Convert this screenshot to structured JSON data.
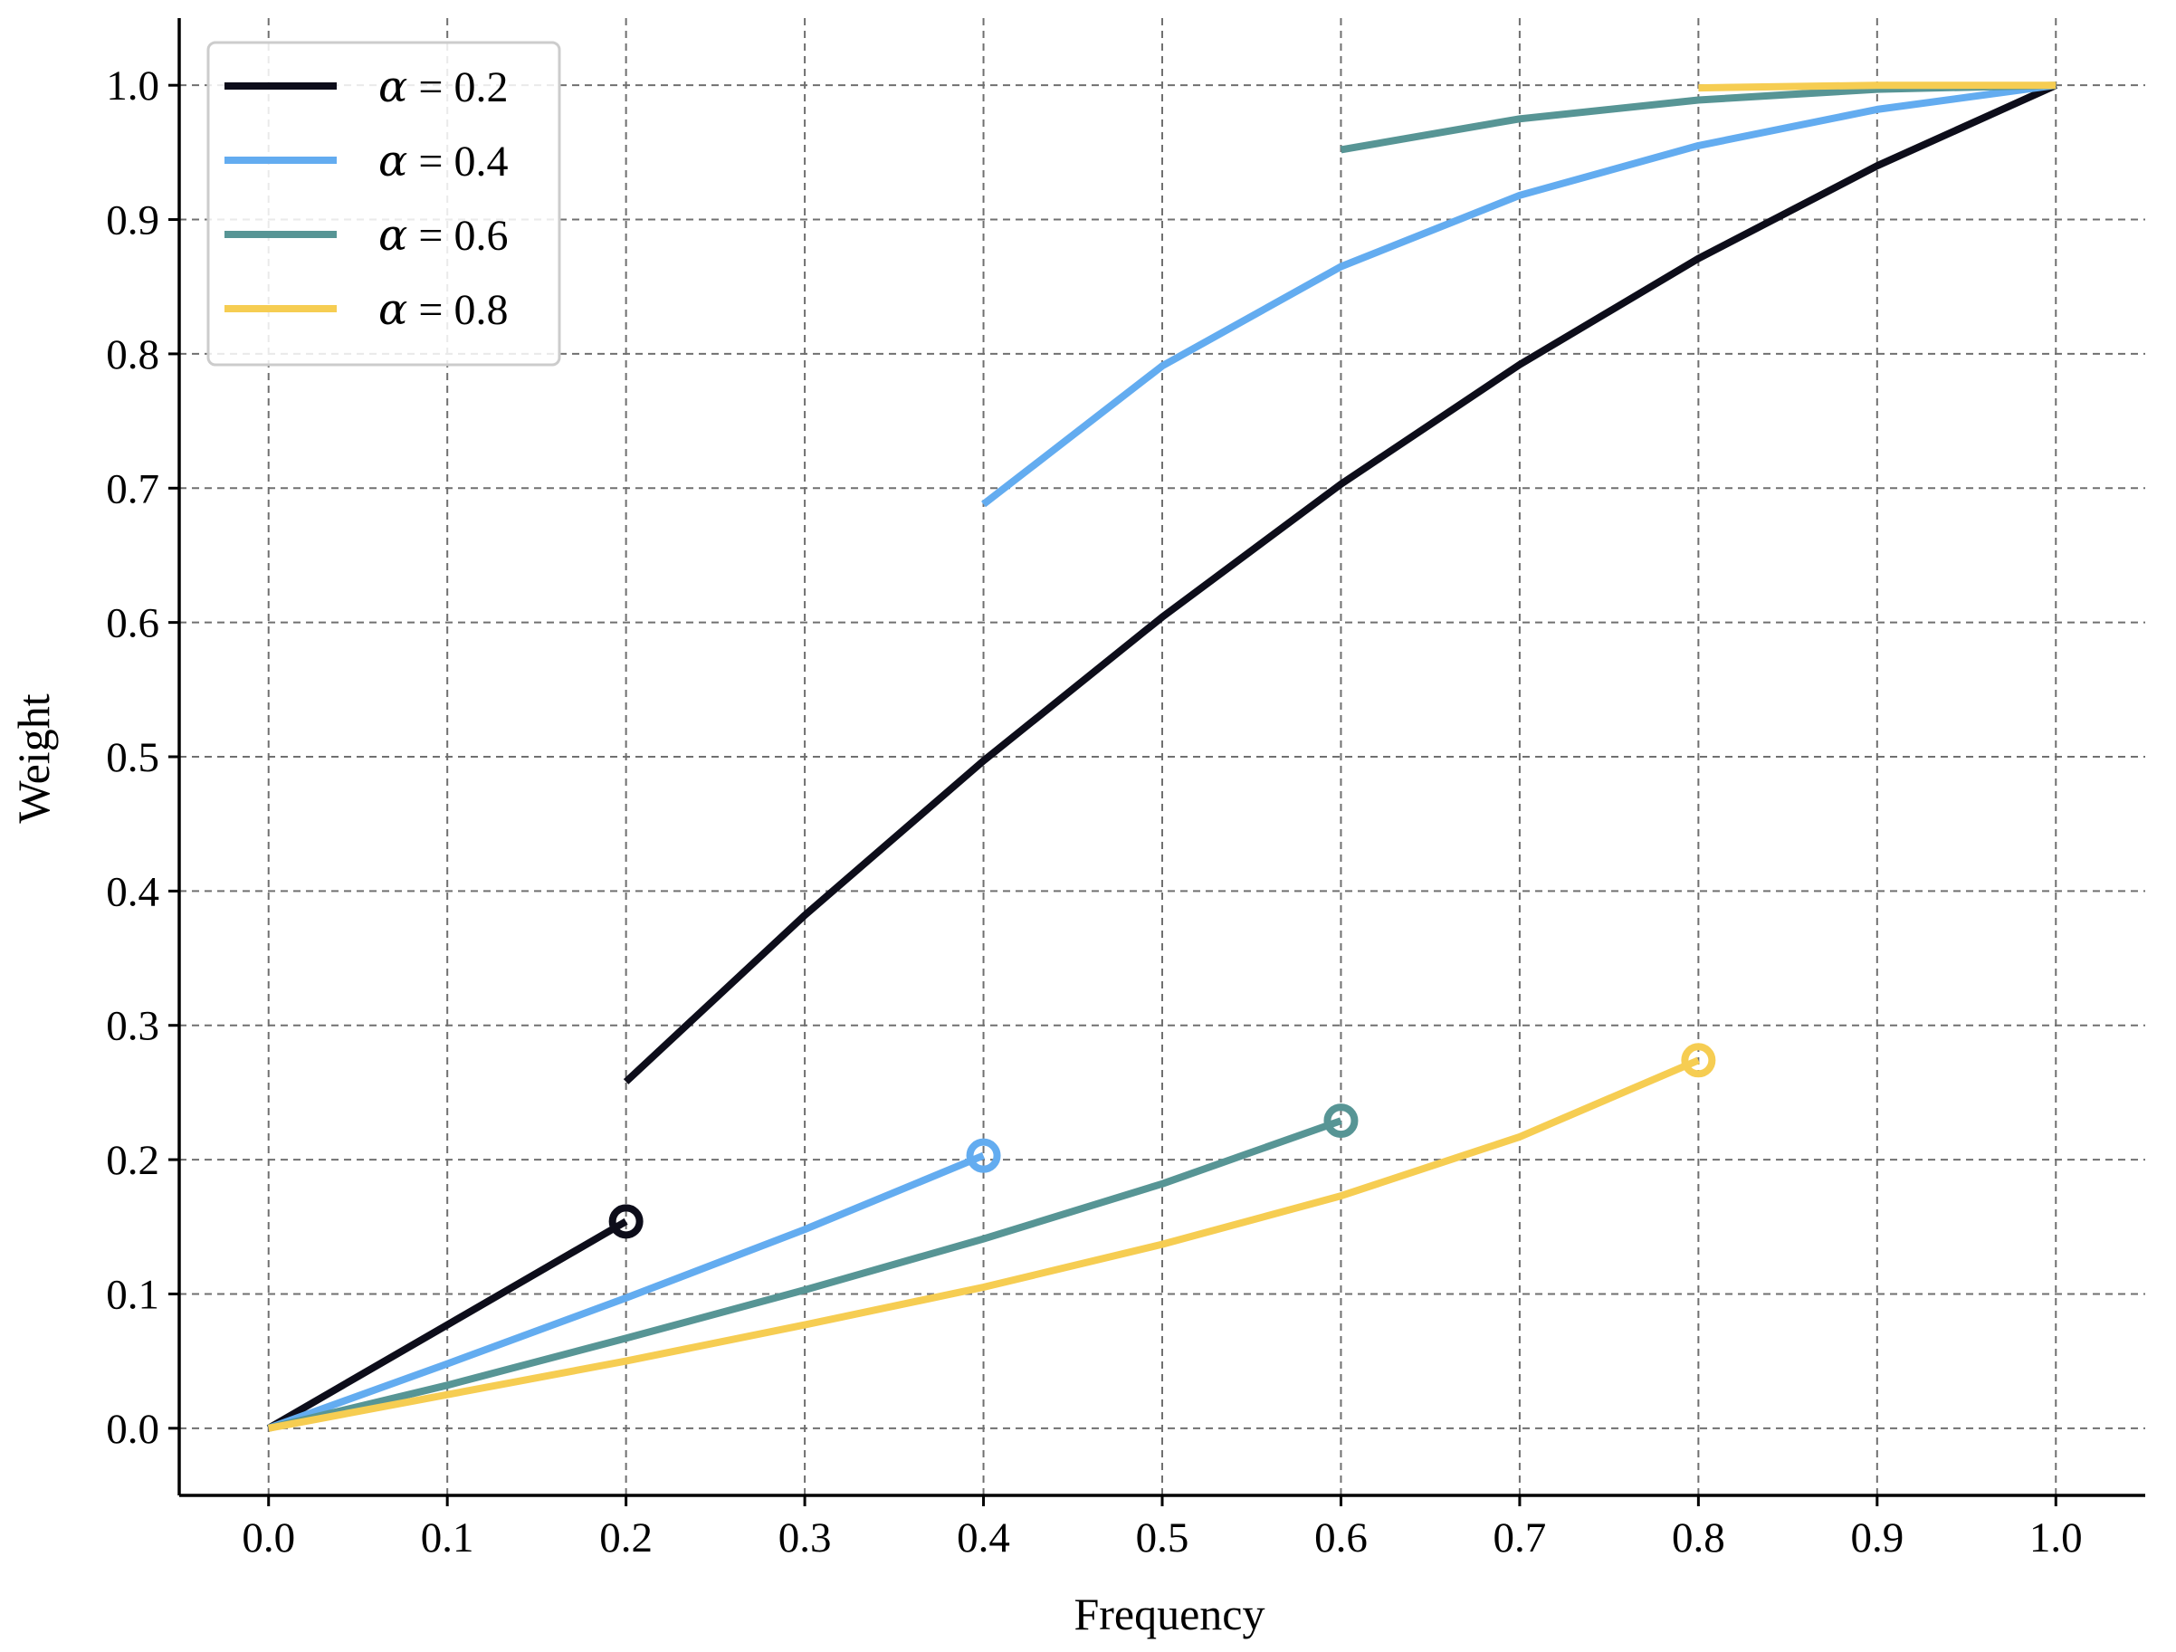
{
  "chart_data": {
    "type": "line",
    "title": "",
    "xlabel": "Frequency",
    "ylabel": "Weight",
    "xlim": [
      -0.05,
      1.05
    ],
    "ylim": [
      -0.05,
      1.05
    ],
    "xticks": [
      "0.0",
      "0.1",
      "0.2",
      "0.3",
      "0.4",
      "0.5",
      "0.6",
      "0.7",
      "0.8",
      "0.9",
      "1.0"
    ],
    "yticks": [
      "0.0",
      "0.1",
      "0.2",
      "0.3",
      "0.4",
      "0.5",
      "0.6",
      "0.7",
      "0.8",
      "0.9",
      "1.0"
    ],
    "grid": true,
    "legend_position": "top-left",
    "series": [
      {
        "name": "α = 0.2",
        "legend_symbol": "α",
        "legend_value": " = 0.2",
        "color": "#0d0d1a",
        "lower_segment": {
          "x": [
            0.0,
            0.1,
            0.2
          ],
          "y": [
            0.0,
            0.077,
            0.154
          ]
        },
        "open_marker": {
          "x": 0.2,
          "y": 0.154
        },
        "upper_segment": {
          "x": [
            0.2,
            0.3,
            0.4,
            0.5,
            0.6,
            0.7,
            0.8,
            0.9,
            1.0
          ],
          "y": [
            0.258,
            0.382,
            0.497,
            0.604,
            0.703,
            0.792,
            0.871,
            0.94,
            1.0
          ]
        }
      },
      {
        "name": "α = 0.4",
        "legend_symbol": "α",
        "legend_value": " = 0.4",
        "color": "#63acf0",
        "lower_segment": {
          "x": [
            0.0,
            0.1,
            0.2,
            0.3,
            0.4
          ],
          "y": [
            0.0,
            0.048,
            0.097,
            0.148,
            0.203
          ]
        },
        "open_marker": {
          "x": 0.4,
          "y": 0.203
        },
        "upper_segment": {
          "x": [
            0.4,
            0.5,
            0.6,
            0.7,
            0.8,
            0.9,
            1.0
          ],
          "y": [
            0.688,
            0.791,
            0.865,
            0.918,
            0.955,
            0.982,
            1.0
          ]
        }
      },
      {
        "name": "α = 0.6",
        "legend_symbol": "α",
        "legend_value": " = 0.6",
        "color": "#579595",
        "lower_segment": {
          "x": [
            0.0,
            0.1,
            0.2,
            0.3,
            0.4,
            0.5,
            0.6
          ],
          "y": [
            0.0,
            0.032,
            0.067,
            0.103,
            0.141,
            0.182,
            0.229
          ]
        },
        "open_marker": {
          "x": 0.6,
          "y": 0.229
        },
        "upper_segment": {
          "x": [
            0.6,
            0.7,
            0.8,
            0.9,
            1.0
          ],
          "y": [
            0.952,
            0.975,
            0.989,
            0.997,
            1.0
          ]
        }
      },
      {
        "name": "α = 0.8",
        "legend_symbol": "α",
        "legend_value": " = 0.8",
        "color": "#f6cd52",
        "lower_segment": {
          "x": [
            0.0,
            0.1,
            0.2,
            0.3,
            0.4,
            0.5,
            0.6,
            0.7,
            0.8
          ],
          "y": [
            0.0,
            0.025,
            0.05,
            0.077,
            0.105,
            0.137,
            0.173,
            0.217,
            0.274
          ]
        },
        "open_marker": {
          "x": 0.8,
          "y": 0.274
        },
        "upper_segment": {
          "x": [
            0.8,
            0.9,
            1.0
          ],
          "y": [
            0.998,
            1.0,
            1.0
          ]
        }
      }
    ]
  }
}
